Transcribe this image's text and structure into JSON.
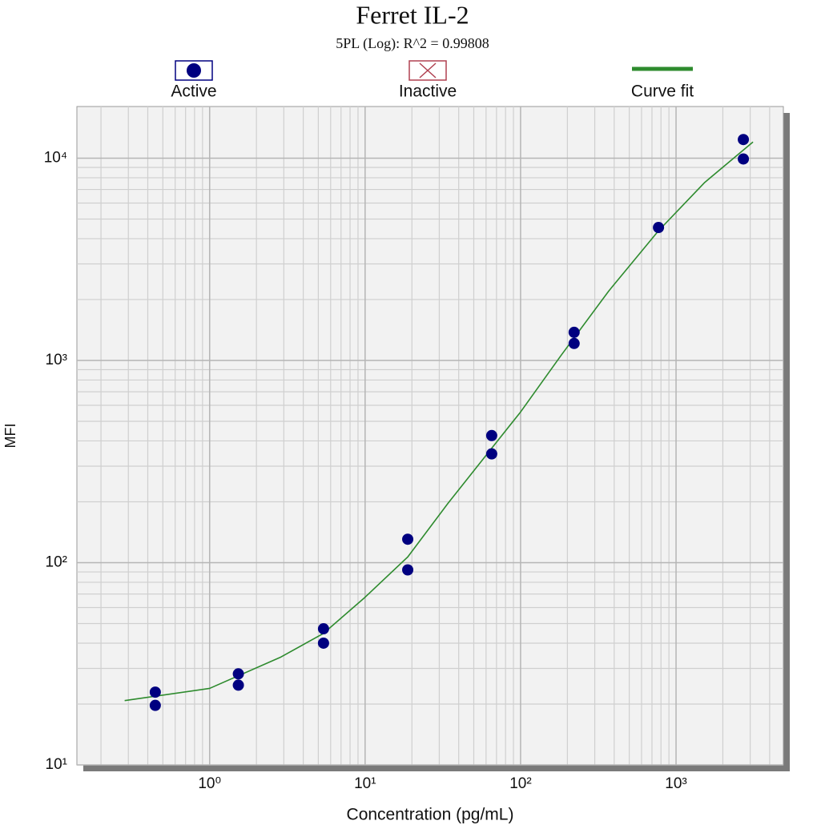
{
  "chart_data": {
    "type": "scatter",
    "title": "Ferret IL-2",
    "subtitle": "5PL (Log): R^2 = 0.99808",
    "x_label": "Concentration (pg/mL)",
    "y_label": "MFI",
    "x_log": true,
    "y_log": true,
    "grid": true,
    "legend": "top",
    "xlim": [
      0.14,
      4900
    ],
    "ylim": [
      10,
      18000
    ],
    "xticks": [
      {
        "value": 1,
        "label": "10⁰"
      },
      {
        "value": 10,
        "label": "10¹"
      },
      {
        "value": 100,
        "label": "10²"
      },
      {
        "value": 1000,
        "label": "10³"
      }
    ],
    "yticks": [
      {
        "value": 10,
        "label": "10¹"
      },
      {
        "value": 100,
        "label": "10²"
      },
      {
        "value": 1000,
        "label": "10³"
      },
      {
        "value": 10000,
        "label": "10⁴"
      }
    ],
    "x_minor_ticks": [
      0.2,
      0.3,
      0.4,
      0.5,
      0.6,
      0.7,
      0.8,
      0.9,
      2,
      3,
      4,
      5,
      6,
      7,
      8,
      9,
      20,
      30,
      40,
      50,
      60,
      70,
      80,
      90,
      200,
      300,
      400,
      500,
      600,
      700,
      800,
      900,
      2000,
      3000,
      4000
    ],
    "y_minor_ticks": [
      20,
      30,
      40,
      50,
      60,
      70,
      80,
      90,
      200,
      300,
      400,
      500,
      600,
      700,
      800,
      900,
      2000,
      3000,
      4000,
      5000,
      6000,
      7000,
      8000,
      9000
    ],
    "series": [
      {
        "name": "Active",
        "type": "scatter",
        "color": "#000080",
        "x": [
          0.447,
          0.447,
          1.53,
          1.53,
          5.4,
          5.4,
          18.8,
          18.8,
          65.2,
          65.2,
          221,
          221,
          771,
          2710,
          2710
        ],
        "values": [
          22.9,
          19.7,
          28.2,
          24.8,
          47.1,
          40.0,
          130.6,
          92.1,
          425,
          345,
          1377,
          1213,
          4540,
          12360,
          9910
        ]
      },
      {
        "name": "Inactive",
        "type": "scatter",
        "color": "#b04050",
        "x": [],
        "values": []
      },
      {
        "name": "Curve fit",
        "type": "line",
        "color": "#2e8b2e",
        "x": [
          0.284,
          1,
          2.84,
          5.4,
          10,
          18.8,
          34.2,
          65.2,
          100,
          182,
          369,
          771,
          1530,
          3126
        ],
        "values": [
          20.8,
          23.9,
          34.0,
          44.7,
          67.5,
          106.7,
          197,
          368,
          556,
          1058,
          2203,
          4375,
          7590,
          12020
        ]
      }
    ]
  }
}
